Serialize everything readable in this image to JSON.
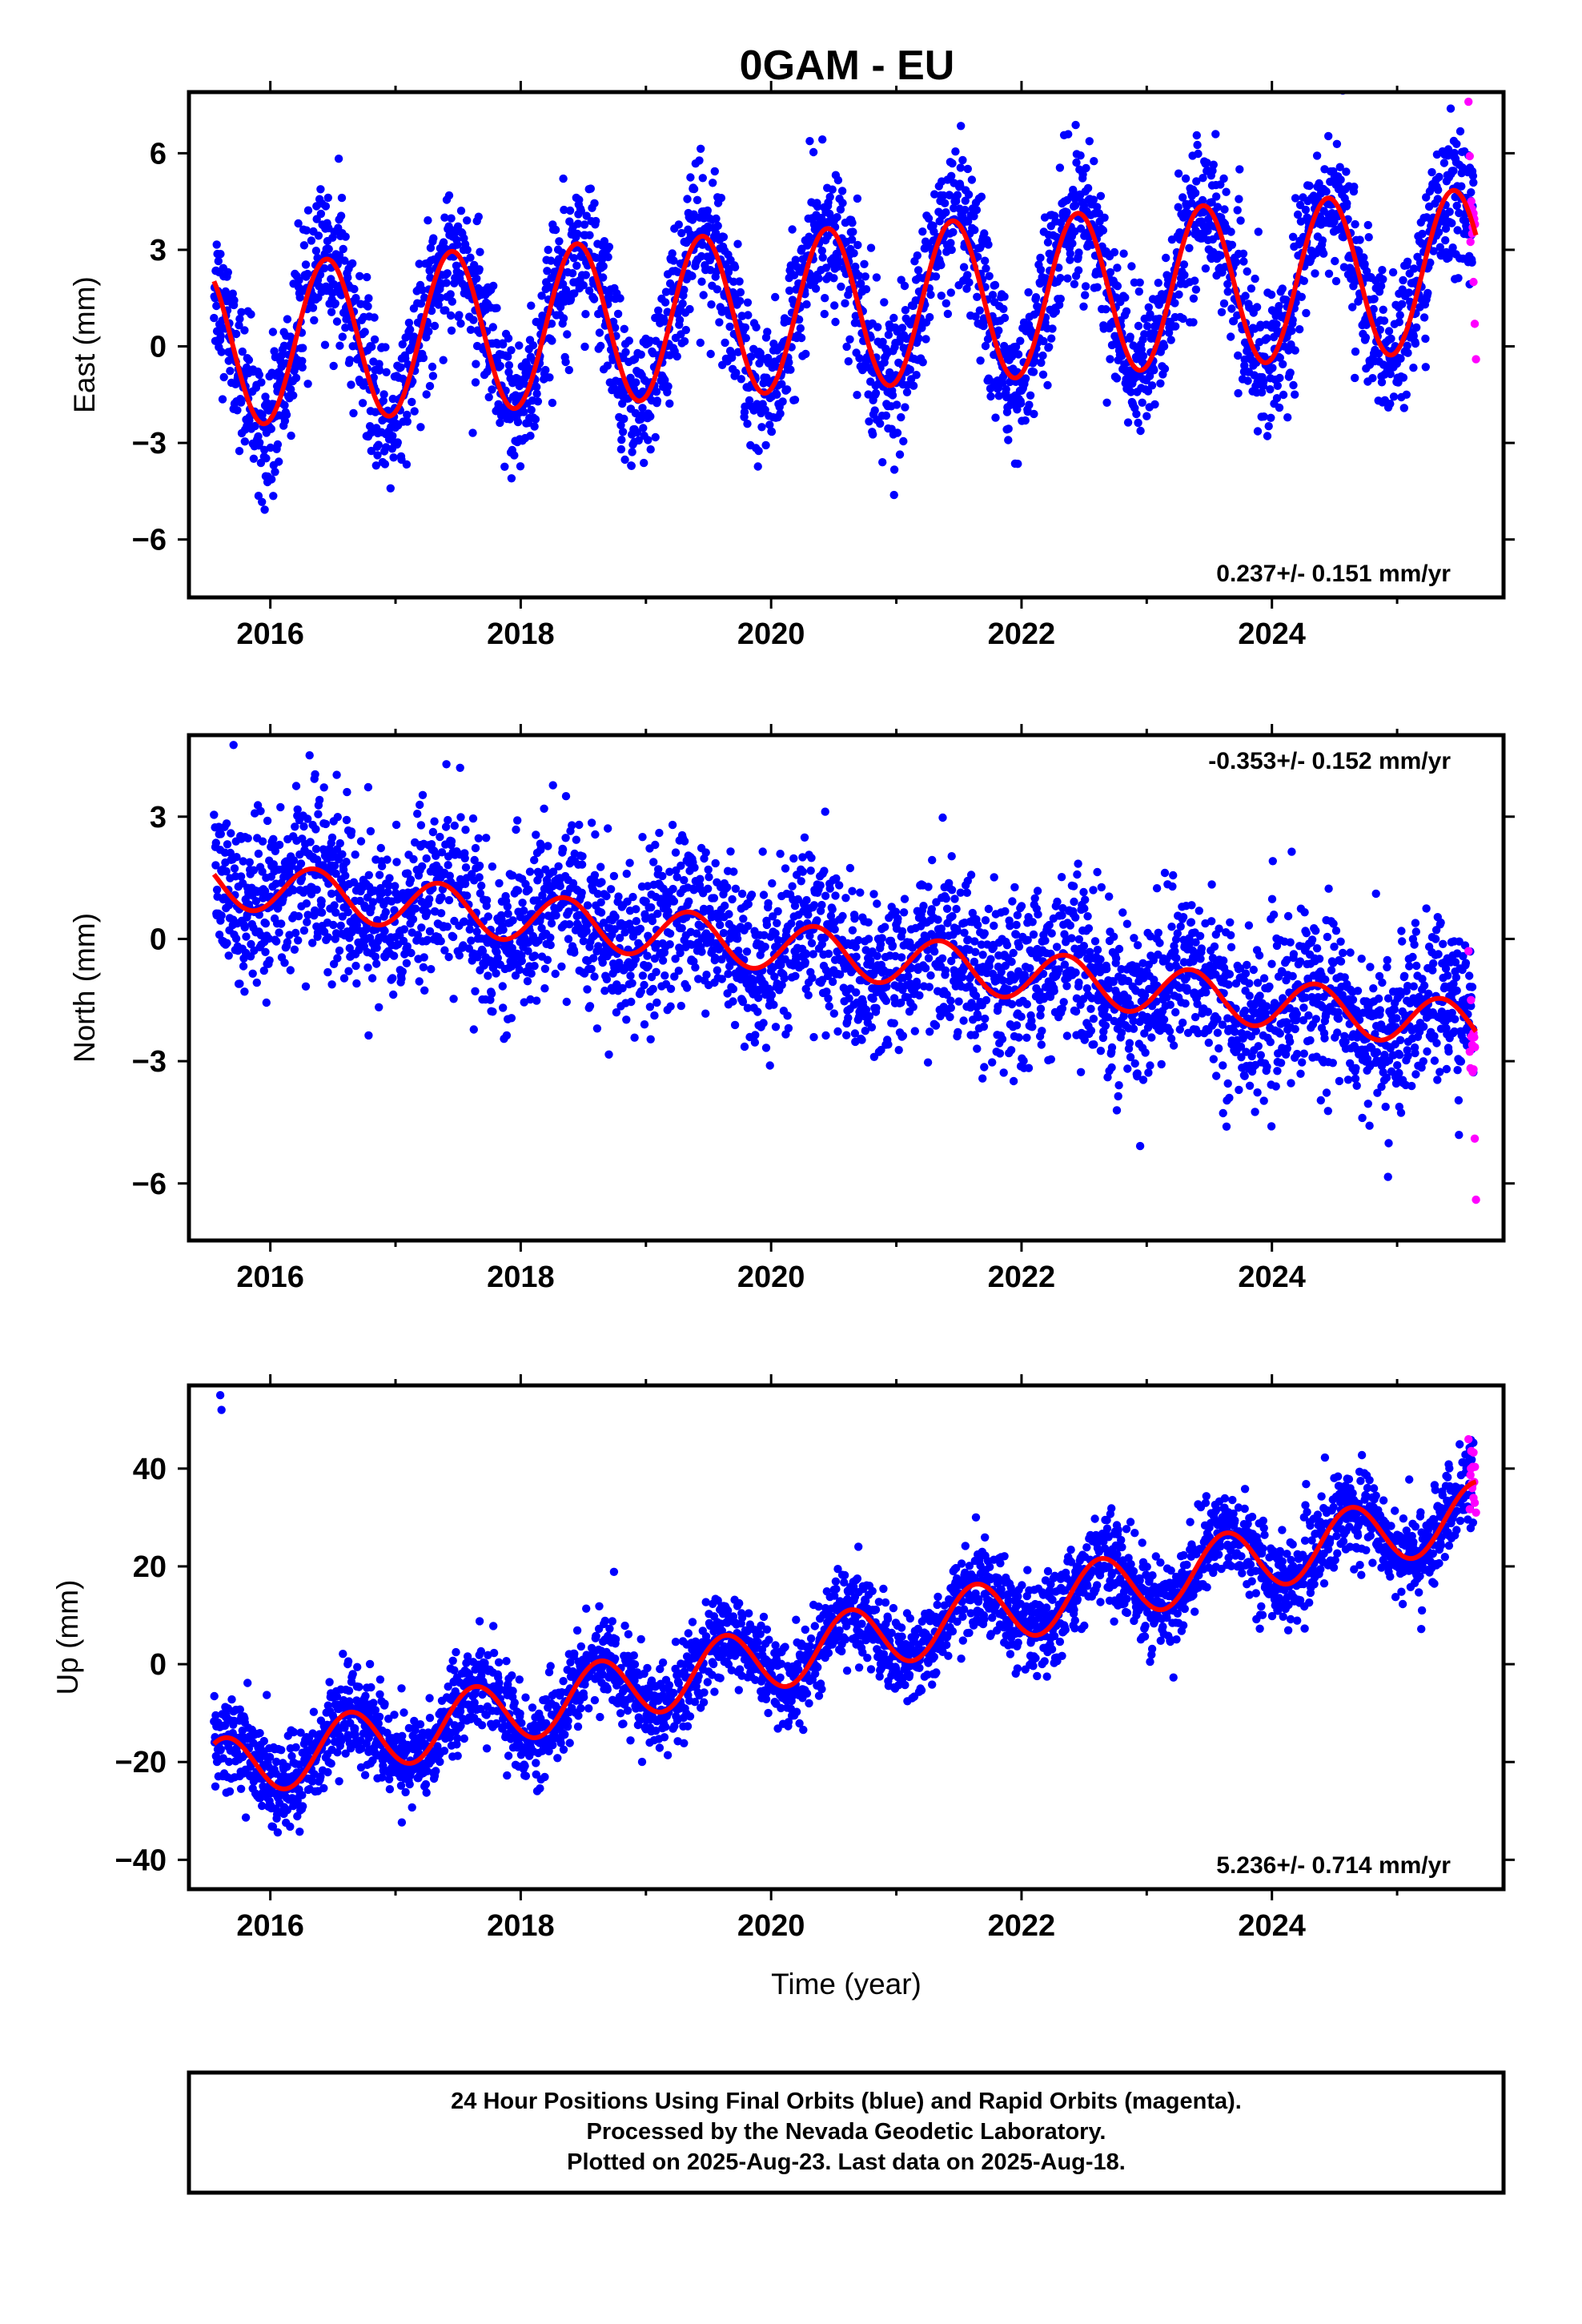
{
  "figure": {
    "title": "0GAM - EU",
    "colors": {
      "final": "#0000ff",
      "rapid": "#ff00ff",
      "model": "#ff0000",
      "axes": "#000000"
    },
    "footer": [
      "24 Hour Positions Using Final Orbits (blue) and Rapid Orbits (magenta).",
      "Processed by the Nevada Geodetic Laboratory.",
      "Plotted on 2025-Aug-23. Last data on 2025-Aug-18."
    ]
  },
  "chart_data": [
    {
      "type": "scatter",
      "ylabel": "East (mm)",
      "xlabel": "",
      "xlim": [
        2015.35,
        2025.85
      ],
      "ylim": [
        -7.8,
        7.9
      ],
      "xticks": [
        2016,
        2018,
        2020,
        2022,
        2024
      ],
      "xtick_labels": [
        "2016",
        "2018",
        "2020",
        "2022",
        "2024"
      ],
      "yticks": [
        -6,
        -3,
        0,
        3,
        6
      ],
      "ytick_labels": [
        "−6",
        "−3",
        "0",
        "3",
        "6"
      ],
      "rate_label": "0.237+/- 0.151 mm/yr",
      "rate_position": "bottom-right",
      "data_start": 2015.55,
      "data_end": 2025.63,
      "series": [
        {
          "role": "final",
          "values_desc": "daily positions",
          "noise_mm": 1.1
        },
        {
          "role": "rapid",
          "x": [
            2025.57,
            2025.59,
            2025.6,
            2025.61,
            2025.62,
            2025.63
          ],
          "y": [
            7.6,
            4.3,
            3.5,
            2.0,
            0.7,
            -0.4
          ]
        },
        {
          "role": "model",
          "trend_intercept_mm": 0.0,
          "trend_rate_mm_yr": 0.237,
          "annual_amp_mm": 2.5,
          "annual_phase_yr": 0.2
        }
      ]
    },
    {
      "type": "scatter",
      "ylabel": "North (mm)",
      "xlabel": "",
      "xlim": [
        2015.35,
        2025.85
      ],
      "ylim": [
        -7.4,
        5.0
      ],
      "xticks": [
        2016,
        2018,
        2020,
        2022,
        2024
      ],
      "xtick_labels": [
        "2016",
        "2018",
        "2020",
        "2022",
        "2024"
      ],
      "yticks": [
        -6,
        -3,
        0,
        3
      ],
      "ytick_labels": [
        "−6",
        "−3",
        "0",
        "3"
      ],
      "rate_label": "-0.353+/- 0.152 mm/yr",
      "rate_position": "top-right",
      "data_start": 2015.55,
      "data_end": 2025.63,
      "series": [
        {
          "role": "final",
          "values_desc": "daily positions",
          "noise_mm": 1.0
        },
        {
          "role": "rapid",
          "x": [
            2025.57,
            2025.59,
            2025.6,
            2025.61,
            2025.62,
            2025.63
          ],
          "y": [
            -0.3,
            -1.5,
            -2.6,
            -3.2,
            -4.9,
            -6.4
          ]
        },
        {
          "role": "model",
          "trend_intercept_mm": 1.4,
          "trend_rate_mm_yr": -0.353,
          "annual_amp_mm": 0.6,
          "annual_phase_yr": 0.1
        }
      ]
    },
    {
      "type": "scatter",
      "ylabel": "Up (mm)",
      "xlabel": "Time (year)",
      "xlim": [
        2015.35,
        2025.85
      ],
      "ylim": [
        -46,
        57
      ],
      "xticks": [
        2016,
        2018,
        2020,
        2022,
        2024
      ],
      "xtick_labels": [
        "2016",
        "2018",
        "2020",
        "2022",
        "2024"
      ],
      "yticks": [
        -40,
        -20,
        0,
        20,
        40
      ],
      "ytick_labels": [
        "−40",
        "−20",
        "0",
        "20",
        "40"
      ],
      "rate_label": "5.236+/- 0.714 mm/yr",
      "rate_position": "bottom-right",
      "data_start": 2015.55,
      "data_end": 2025.63,
      "series": [
        {
          "role": "final",
          "values_desc": "daily positions",
          "noise_mm": 4.5,
          "extra_points": {
            "x": [
              2015.6,
              2015.61
            ],
            "y": [
              55,
              52
            ]
          }
        },
        {
          "role": "rapid",
          "x": [
            2025.57,
            2025.59,
            2025.6,
            2025.61,
            2025.62,
            2025.63
          ],
          "y": [
            46,
            40,
            36,
            34,
            33,
            31
          ]
        },
        {
          "role": "model",
          "trend_intercept_mm": -22.0,
          "trend_rate_mm_yr": 5.236,
          "annual_amp_mm": 6.5,
          "annual_phase_yr": 0.38
        }
      ]
    }
  ]
}
